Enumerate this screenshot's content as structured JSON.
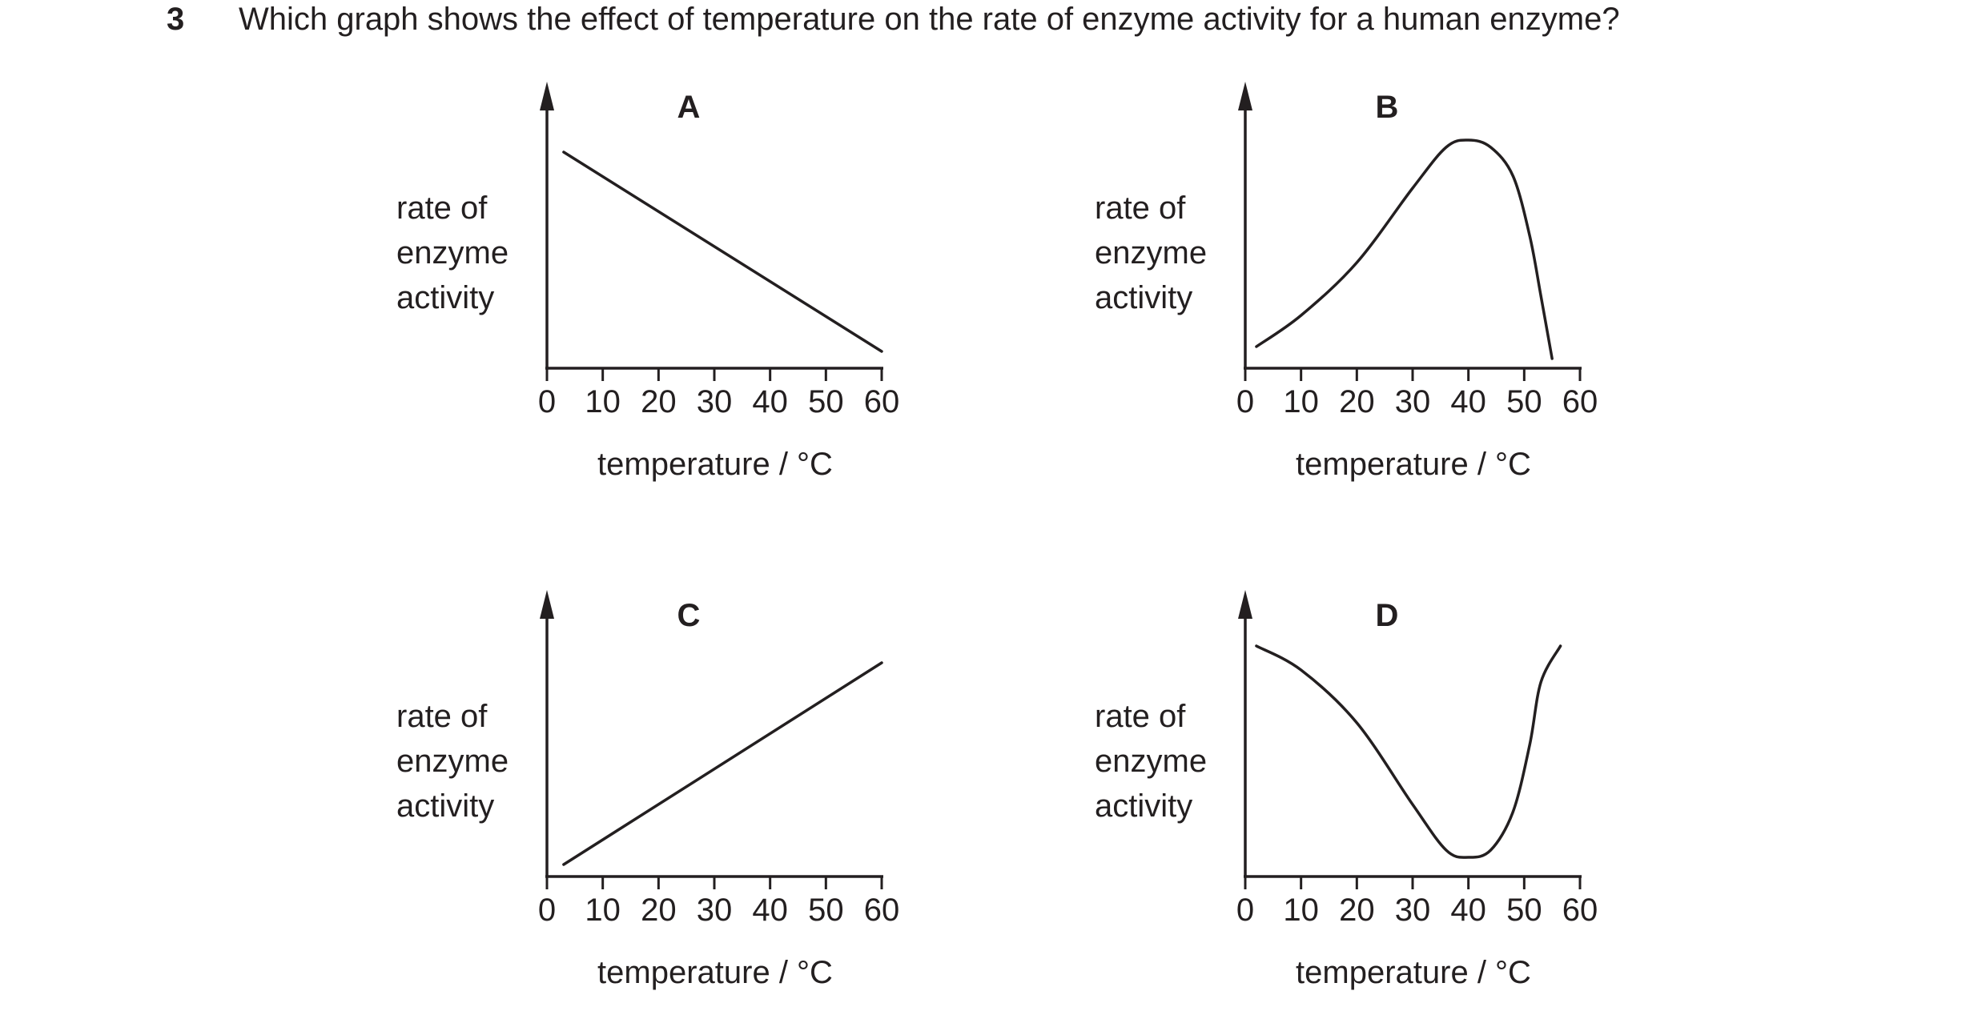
{
  "question": {
    "number": "3",
    "text": "Which graph shows the effect of temperature on the rate of enzyme activity for a human enzyme?"
  },
  "chart_data": [
    {
      "type": "line",
      "title": "A",
      "ylabel": [
        "rate of",
        "enzyme",
        "activity"
      ],
      "xlabel": "temperature / °C",
      "xticks": [
        0,
        10,
        20,
        30,
        40,
        50,
        60
      ],
      "xlim": [
        0,
        60
      ],
      "ylim": [
        0,
        1
      ],
      "series": [
        {
          "x": [
            3,
            60
          ],
          "y": [
            0.9,
            0.07
          ]
        }
      ],
      "smooth": false
    },
    {
      "type": "line",
      "title": "B",
      "ylabel": [
        "rate of",
        "enzyme",
        "activity"
      ],
      "xlabel": "temperature / °C",
      "xticks": [
        0,
        10,
        20,
        30,
        40,
        50,
        60
      ],
      "xlim": [
        0,
        60
      ],
      "ylim": [
        0,
        1
      ],
      "series": [
        {
          "x": [
            2,
            10,
            20,
            30,
            36,
            40,
            44,
            48,
            51,
            53,
            55
          ],
          "y": [
            0.09,
            0.22,
            0.44,
            0.75,
            0.92,
            0.95,
            0.92,
            0.8,
            0.55,
            0.3,
            0.04
          ]
        }
      ],
      "smooth": true
    },
    {
      "type": "line",
      "title": "C",
      "ylabel": [
        "rate of",
        "enzyme",
        "activity"
      ],
      "xlabel": "temperature / °C",
      "xticks": [
        0,
        10,
        20,
        30,
        40,
        50,
        60
      ],
      "xlim": [
        0,
        60
      ],
      "ylim": [
        0,
        1
      ],
      "series": [
        {
          "x": [
            3,
            60
          ],
          "y": [
            0.05,
            0.89
          ]
        }
      ],
      "smooth": false
    },
    {
      "type": "line",
      "title": "D",
      "ylabel": [
        "rate of",
        "enzyme",
        "activity"
      ],
      "xlabel": "temperature / °C",
      "xticks": [
        0,
        10,
        20,
        30,
        40,
        50,
        60
      ],
      "xlim": [
        0,
        60
      ],
      "ylim": [
        0,
        1
      ],
      "series": [
        {
          "x": [
            2,
            10,
            20,
            30,
            36,
            40,
            44,
            48,
            51,
            53,
            56.5
          ],
          "y": [
            0.96,
            0.86,
            0.64,
            0.3,
            0.11,
            0.08,
            0.11,
            0.27,
            0.55,
            0.81,
            0.96
          ]
        }
      ],
      "smooth": true
    }
  ]
}
